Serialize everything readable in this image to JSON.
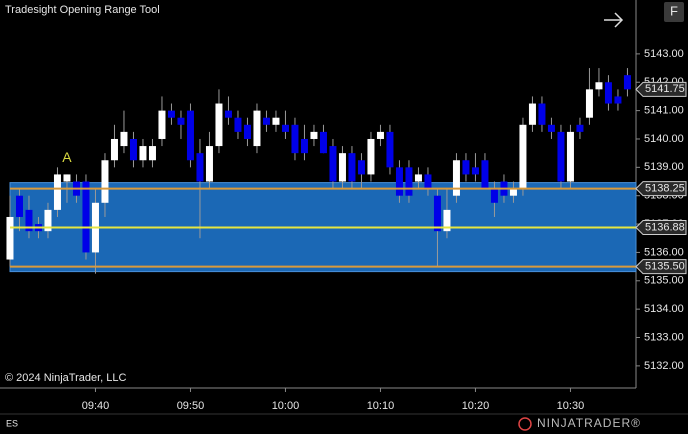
{
  "chart_data": {
    "type": "candlestick",
    "title": "Tradesight Opening Range Tool",
    "symbol": "ES",
    "copyright": "© 2024 NinjaTrader, LLC",
    "logo": "NINJATRADER®",
    "button": "F",
    "annotation": {
      "text": "A",
      "x": 37,
      "color": "#d8d840"
    },
    "x": [
      31,
      32,
      33,
      34,
      35,
      36,
      37,
      38,
      39,
      40,
      41,
      42,
      43,
      44,
      45,
      46,
      47,
      48,
      49,
      50,
      51,
      52,
      53,
      54,
      55,
      56,
      57,
      58,
      59,
      60,
      61,
      62,
      63,
      64,
      65,
      66,
      67,
      68,
      69,
      70,
      71,
      72,
      73,
      74,
      75,
      76,
      77,
      78,
      79,
      80,
      81,
      82,
      83,
      84,
      85,
      86,
      87,
      88,
      89,
      90,
      91,
      92,
      93,
      94,
      95,
      96
    ],
    "open": [
      5135.75,
      5138,
      5137.5,
      5137,
      5136.75,
      5137.5,
      5138.5,
      5138.5,
      5138.5,
      5136,
      5137.75,
      5139.25,
      5139.75,
      5140,
      5139.25,
      5139.25,
      5140,
      5141,
      5140.75,
      5141,
      5139.5,
      5138.5,
      5139.75,
      5141,
      5140.75,
      5140.5,
      5139.75,
      5140.75,
      5140.5,
      5140.5,
      5140.5,
      5140,
      5140,
      5140.25,
      5139.75,
      5138.5,
      5139.5,
      5139.25,
      5138.75,
      5140,
      5140.25,
      5139,
      5139,
      5138.5,
      5138.75,
      5138,
      5136.75,
      5138,
      5139.25,
      5139,
      5139.25,
      5138.25,
      5138.5,
      5138,
      5138.25,
      5140.5,
      5141.25,
      5140.5,
      5140.25,
      5138.5,
      5140.5,
      5140.75,
      5141.75,
      5142,
      5141.5,
      5142.25
    ],
    "high": [
      5138,
      5138.25,
      5138,
      5137.25,
      5137.75,
      5139,
      5138.75,
      5138.75,
      5138.75,
      5138.25,
      5139.5,
      5140.5,
      5141,
      5140.25,
      5140,
      5140,
      5141.5,
      5141.25,
      5141,
      5141.25,
      5140,
      5140.25,
      5141.75,
      5141.5,
      5141,
      5140.75,
      5141.25,
      5141,
      5141,
      5141,
      5140.75,
      5140.5,
      5140.5,
      5140.5,
      5140,
      5139.75,
      5139.75,
      5139.5,
      5140.25,
      5140.5,
      5140.5,
      5139.25,
      5139.25,
      5139,
      5139,
      5138.25,
      5138.25,
      5139.5,
      5139.5,
      5139.5,
      5139.5,
      5138.5,
      5138.75,
      5138.5,
      5140.75,
      5141.5,
      5141.5,
      5140.75,
      5140.5,
      5140.5,
      5140.75,
      5142.5,
      5142.5,
      5142.25,
      5141.75,
      5142.5
    ],
    "low": [
      5135.5,
      5136.75,
      5136.5,
      5136.5,
      5136.5,
      5137.25,
      5137.75,
      5137.75,
      5135.75,
      5135.25,
      5137.25,
      5139,
      5139.5,
      5139,
      5139,
      5139,
      5139.75,
      5140.5,
      5140,
      5139,
      5136.5,
      5138.25,
      5139.5,
      5140.5,
      5140,
      5139.75,
      5139.5,
      5140.25,
      5140.25,
      5140,
      5139.25,
      5139.25,
      5139.75,
      5139.5,
      5138.25,
      5138.25,
      5138.25,
      5138.25,
      5138.5,
      5139.75,
      5138.75,
      5137.75,
      5137.75,
      5138.25,
      5138,
      5135.5,
      5136.5,
      5137.75,
      5138.5,
      5138.5,
      5138.25,
      5137.25,
      5137.75,
      5137.75,
      5138,
      5140.25,
      5140.25,
      5140,
      5138.25,
      5138.25,
      5140,
      5140.5,
      5141.5,
      5141,
      5141,
      5141.5
    ],
    "close": [
      5137.25,
      5137.25,
      5136.75,
      5136.75,
      5137.5,
      5138.75,
      5138.75,
      5138,
      5136,
      5137.75,
      5139.25,
      5140,
      5140.25,
      5139.25,
      5139.75,
      5139.75,
      5141,
      5140.75,
      5140.5,
      5139.25,
      5138.5,
      5139.75,
      5141.25,
      5140.75,
      5140.25,
      5140,
      5141,
      5140.5,
      5140.75,
      5140.25,
      5139.5,
      5139.5,
      5140.25,
      5139.5,
      5138.5,
      5139.5,
      5138.5,
      5138.75,
      5140,
      5140.25,
      5139,
      5138,
      5138,
      5138.75,
      5138.25,
      5136.75,
      5137.5,
      5139.25,
      5138.75,
      5138.75,
      5138.25,
      5137.75,
      5138,
      5138.25,
      5140.5,
      5141.25,
      5140.5,
      5140.25,
      5138.5,
      5140.25,
      5140.25,
      5141.75,
      5142,
      5141.25,
      5141.25,
      5141.75
    ],
    "up_color": "#ffffff",
    "down_color": "#0000e8",
    "wick_color": "#9a9a9a",
    "opening_range": {
      "high": 5138.25,
      "mid": 5136.88,
      "low": {
        "value": 5135.5,
        "label": "5135.50"
      },
      "band_color": "#1b68b5",
      "edge_color": "#d99a3c",
      "mid_color": "#e6e640"
    },
    "last_price": 5141.75,
    "xlim": [
      29.95,
      96.9
    ],
    "ylim": [
      5131.22,
      5144.9
    ],
    "xticks": [
      {
        "value": 40,
        "label": "09:40"
      },
      {
        "value": 50,
        "label": "09:50"
      },
      {
        "value": 60,
        "label": "10:00"
      },
      {
        "value": 70,
        "label": "10:10"
      },
      {
        "value": 80,
        "label": "10:20"
      },
      {
        "value": 90,
        "label": "10:30"
      }
    ],
    "yticks": [
      {
        "value": 5132,
        "label": "5132.00"
      },
      {
        "value": 5133,
        "label": "5133.00"
      },
      {
        "value": 5134,
        "label": "5134.00"
      },
      {
        "value": 5135,
        "label": "5135.00"
      },
      {
        "value": 5136,
        "label": "5136.00"
      },
      {
        "value": 5137,
        "label": "5137.00"
      },
      {
        "value": 5138,
        "label": "5138.00"
      },
      {
        "value": 5139,
        "label": "5139.00"
      },
      {
        "value": 5140,
        "label": "5140.00"
      },
      {
        "value": 5141,
        "label": "5141.00"
      },
      {
        "value": 5142,
        "label": "5142.00"
      },
      {
        "value": 5143,
        "label": "5143.00"
      }
    ]
  }
}
